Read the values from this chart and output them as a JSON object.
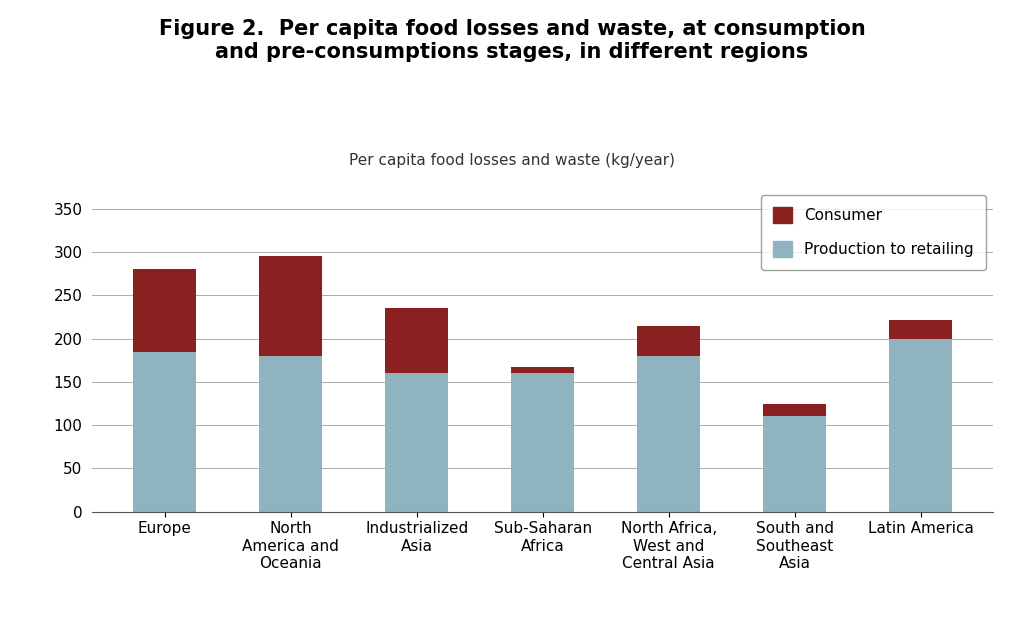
{
  "title": "Figure 2.  Per capita food losses and waste, at consumption\nand pre-consumptions stages, in different regions",
  "ylabel_text": "Per capita food losses and waste (kg/year)",
  "categories": [
    "Europe",
    "North\nAmerica and\nOceania",
    "Industrialized\nAsia",
    "Sub-Saharan\nAfrica",
    "North Africa,\nWest and\nCentral Asia",
    "South and\nSoutheast\nAsia",
    "Latin America"
  ],
  "production_values": [
    185,
    180,
    160,
    160,
    180,
    110,
    200
  ],
  "consumer_values": [
    95,
    115,
    75,
    7,
    35,
    15,
    22
  ],
  "production_color": "#8FB4BF",
  "consumer_color": "#8B2020",
  "ylim": [
    0,
    375
  ],
  "yticks": [
    0,
    50,
    100,
    150,
    200,
    250,
    300,
    350
  ],
  "legend_consumer": "Consumer",
  "legend_production": "Production to retailing",
  "title_fontsize": 15,
  "ylabel_fontsize": 11,
  "tick_fontsize": 11,
  "legend_fontsize": 11,
  "background_color": "#ffffff"
}
